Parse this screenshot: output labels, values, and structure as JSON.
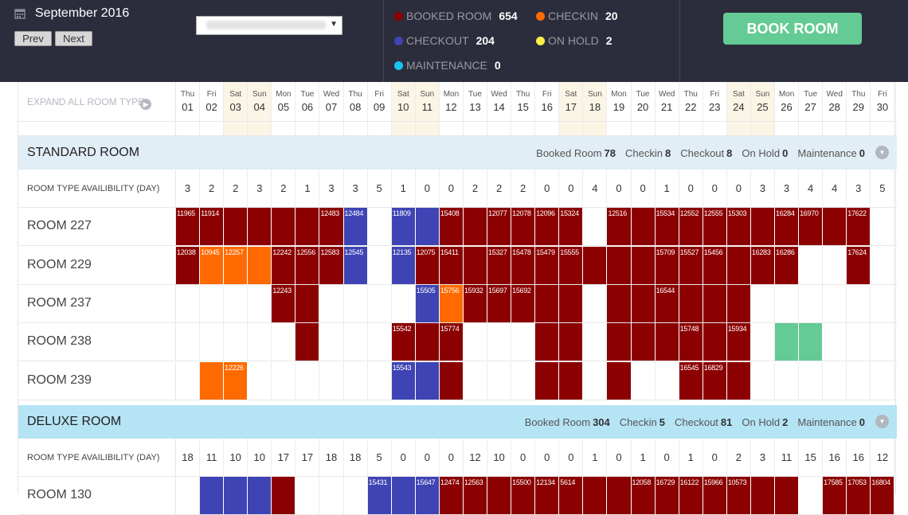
{
  "header": {
    "month_title": "September 2016",
    "prev_label": "Prev",
    "next_label": "Next",
    "hotel_select_value": "",
    "book_button_label": "BOOK ROOM",
    "statuses": [
      {
        "label": "BOOKED ROOM",
        "count": "654",
        "color": "#8b0000"
      },
      {
        "label": "CHECKIN",
        "count": "20",
        "color": "#ff6a00"
      },
      {
        "label": "CHECKOUT",
        "count": "204",
        "color": "#3f44b4"
      },
      {
        "label": "ON HOLD",
        "count": "2",
        "color": "#ffef48"
      },
      {
        "label": "MAINTENANCE",
        "count": "0",
        "color": "#17c4f2"
      }
    ]
  },
  "colors": {
    "booked": "#8b0000",
    "checkin": "#ff6a00",
    "checkout": "#3f44b4",
    "onhold": "#ffef48",
    "maintenance": "#17c4f2",
    "available_selected": "#64cb94"
  },
  "calendar": {
    "expand_label": "EXPAND ALL ROOM TYPE",
    "days": [
      {
        "name": "Thu",
        "num": "01"
      },
      {
        "name": "Fri",
        "num": "02"
      },
      {
        "name": "Sat",
        "num": "03"
      },
      {
        "name": "Sun",
        "num": "04"
      },
      {
        "name": "Mon",
        "num": "05"
      },
      {
        "name": "Tue",
        "num": "06"
      },
      {
        "name": "Wed",
        "num": "07"
      },
      {
        "name": "Thu",
        "num": "08"
      },
      {
        "name": "Fri",
        "num": "09"
      },
      {
        "name": "Sat",
        "num": "10"
      },
      {
        "name": "Sun",
        "num": "11"
      },
      {
        "name": "Mon",
        "num": "12"
      },
      {
        "name": "Tue",
        "num": "13"
      },
      {
        "name": "Wed",
        "num": "14"
      },
      {
        "name": "Thu",
        "num": "15"
      },
      {
        "name": "Fri",
        "num": "16"
      },
      {
        "name": "Sat",
        "num": "17"
      },
      {
        "name": "Sun",
        "num": "18"
      },
      {
        "name": "Mon",
        "num": "19"
      },
      {
        "name": "Tue",
        "num": "20"
      },
      {
        "name": "Wed",
        "num": "21"
      },
      {
        "name": "Thu",
        "num": "22"
      },
      {
        "name": "Fri",
        "num": "23"
      },
      {
        "name": "Sat",
        "num": "24"
      },
      {
        "name": "Sun",
        "num": "25"
      },
      {
        "name": "Mon",
        "num": "26"
      },
      {
        "name": "Tue",
        "num": "27"
      },
      {
        "name": "Wed",
        "num": "28"
      },
      {
        "name": "Thu",
        "num": "29"
      },
      {
        "name": "Fri",
        "num": "30"
      }
    ]
  },
  "sections": [
    {
      "title": "STANDARD ROOM",
      "stats": [
        {
          "label": "Booked Room",
          "value": "78"
        },
        {
          "label": "Checkin",
          "value": "8"
        },
        {
          "label": "Checkout",
          "value": "8"
        },
        {
          "label": "On Hold",
          "value": "0"
        },
        {
          "label": "Maintenance",
          "value": "0"
        }
      ],
      "availability_label": "ROOM TYPE AVAILIBILITY (DAY)",
      "availability": [
        "3",
        "2",
        "2",
        "3",
        "2",
        "1",
        "3",
        "3",
        "5",
        "1",
        "0",
        "0",
        "2",
        "2",
        "2",
        "0",
        "0",
        "4",
        "0",
        "0",
        "1",
        "0",
        "0",
        "0",
        "3",
        "3",
        "4",
        "4",
        "3",
        "5"
      ],
      "rooms": [
        {
          "name": "ROOM 227",
          "days": [
            {
              "s": "booked",
              "r": "11965"
            },
            {
              "s": "booked",
              "r": "11914"
            },
            {
              "s": "booked",
              "r": ""
            },
            {
              "s": "booked",
              "r": ""
            },
            {
              "s": "booked",
              "r": ""
            },
            {
              "s": "booked",
              "r": ""
            },
            {
              "s": "booked",
              "r": "12483"
            },
            {
              "s": "checkout",
              "r": "12484"
            },
            {
              "s": "",
              "r": ""
            },
            {
              "s": "checkout",
              "r": "11809"
            },
            {
              "s": "checkout",
              "r": ""
            },
            {
              "s": "booked",
              "r": "15408"
            },
            {
              "s": "booked",
              "r": ""
            },
            {
              "s": "booked",
              "r": "12077"
            },
            {
              "s": "booked",
              "r": "12078"
            },
            {
              "s": "booked",
              "r": "12096"
            },
            {
              "s": "booked",
              "r": "15324"
            },
            {
              "s": "",
              "r": ""
            },
            {
              "s": "booked",
              "r": "12516"
            },
            {
              "s": "booked",
              "r": ""
            },
            {
              "s": "booked",
              "r": "15534"
            },
            {
              "s": "booked",
              "r": "12552"
            },
            {
              "s": "booked",
              "r": "12555"
            },
            {
              "s": "booked",
              "r": "15303"
            },
            {
              "s": "booked",
              "r": ""
            },
            {
              "s": "booked",
              "r": "16284"
            },
            {
              "s": "booked",
              "r": "16970"
            },
            {
              "s": "booked",
              "r": ""
            },
            {
              "s": "booked",
              "r": "17622"
            },
            {
              "s": "",
              "r": ""
            }
          ]
        },
        {
          "name": "ROOM 229",
          "days": [
            {
              "s": "booked",
              "r": "12038"
            },
            {
              "s": "checkin",
              "r": "10945"
            },
            {
              "s": "checkin",
              "r": "12257"
            },
            {
              "s": "checkin",
              "r": ""
            },
            {
              "s": "booked",
              "r": "12242"
            },
            {
              "s": "booked",
              "r": "12556"
            },
            {
              "s": "booked",
              "r": "12583"
            },
            {
              "s": "checkout",
              "r": "12545"
            },
            {
              "s": "",
              "r": ""
            },
            {
              "s": "checkout",
              "r": "12135"
            },
            {
              "s": "booked",
              "r": "12075"
            },
            {
              "s": "booked",
              "r": "15411"
            },
            {
              "s": "booked",
              "r": ""
            },
            {
              "s": "booked",
              "r": "15327"
            },
            {
              "s": "booked",
              "r": "15478"
            },
            {
              "s": "booked",
              "r": "15479"
            },
            {
              "s": "booked",
              "r": "15555"
            },
            {
              "s": "booked",
              "r": ""
            },
            {
              "s": "booked",
              "r": ""
            },
            {
              "s": "booked",
              "r": ""
            },
            {
              "s": "booked",
              "r": "15709"
            },
            {
              "s": "booked",
              "r": "15527"
            },
            {
              "s": "booked",
              "r": "15456"
            },
            {
              "s": "booked",
              "r": ""
            },
            {
              "s": "booked",
              "r": "16283"
            },
            {
              "s": "booked",
              "r": "16286"
            },
            {
              "s": "",
              "r": ""
            },
            {
              "s": "",
              "r": ""
            },
            {
              "s": "booked",
              "r": "17624"
            },
            {
              "s": "",
              "r": ""
            }
          ]
        },
        {
          "name": "ROOM 237",
          "days": [
            {
              "s": "",
              "r": ""
            },
            {
              "s": "",
              "r": ""
            },
            {
              "s": "",
              "r": ""
            },
            {
              "s": "",
              "r": ""
            },
            {
              "s": "booked",
              "r": "12243"
            },
            {
              "s": "booked",
              "r": ""
            },
            {
              "s": "",
              "r": ""
            },
            {
              "s": "",
              "r": ""
            },
            {
              "s": "",
              "r": ""
            },
            {
              "s": "",
              "r": ""
            },
            {
              "s": "checkout",
              "r": "15505"
            },
            {
              "s": "checkin",
              "r": "15756"
            },
            {
              "s": "booked",
              "r": "15932"
            },
            {
              "s": "booked",
              "r": "15697"
            },
            {
              "s": "booked",
              "r": "15692"
            },
            {
              "s": "booked",
              "r": ""
            },
            {
              "s": "booked",
              "r": ""
            },
            {
              "s": "",
              "r": ""
            },
            {
              "s": "booked",
              "r": ""
            },
            {
              "s": "booked",
              "r": ""
            },
            {
              "s": "booked",
              "r": "16544"
            },
            {
              "s": "booked",
              "r": ""
            },
            {
              "s": "booked",
              "r": ""
            },
            {
              "s": "booked",
              "r": ""
            },
            {
              "s": "",
              "r": ""
            },
            {
              "s": "",
              "r": ""
            },
            {
              "s": "",
              "r": ""
            },
            {
              "s": "",
              "r": ""
            },
            {
              "s": "",
              "r": ""
            },
            {
              "s": "",
              "r": ""
            }
          ]
        },
        {
          "name": "ROOM 238",
          "days": [
            {
              "s": "",
              "r": ""
            },
            {
              "s": "",
              "r": ""
            },
            {
              "s": "",
              "r": ""
            },
            {
              "s": "",
              "r": ""
            },
            {
              "s": "",
              "r": ""
            },
            {
              "s": "booked",
              "r": ""
            },
            {
              "s": "",
              "r": ""
            },
            {
              "s": "",
              "r": ""
            },
            {
              "s": "",
              "r": ""
            },
            {
              "s": "booked",
              "r": "15542"
            },
            {
              "s": "booked",
              "r": ""
            },
            {
              "s": "booked",
              "r": "15774"
            },
            {
              "s": "",
              "r": ""
            },
            {
              "s": "",
              "r": ""
            },
            {
              "s": "",
              "r": ""
            },
            {
              "s": "booked",
              "r": ""
            },
            {
              "s": "booked",
              "r": ""
            },
            {
              "s": "",
              "r": ""
            },
            {
              "s": "booked",
              "r": ""
            },
            {
              "s": "booked",
              "r": ""
            },
            {
              "s": "booked",
              "r": ""
            },
            {
              "s": "booked",
              "r": "15748"
            },
            {
              "s": "booked",
              "r": ""
            },
            {
              "s": "booked",
              "r": "15934"
            },
            {
              "s": "",
              "r": ""
            },
            {
              "s": "selected",
              "r": ""
            },
            {
              "s": "selected",
              "r": ""
            },
            {
              "s": "",
              "r": ""
            },
            {
              "s": "",
              "r": ""
            },
            {
              "s": "",
              "r": ""
            }
          ]
        },
        {
          "name": "ROOM 239",
          "days": [
            {
              "s": "",
              "r": ""
            },
            {
              "s": "checkin",
              "r": ""
            },
            {
              "s": "checkin",
              "r": "12226"
            },
            {
              "s": "",
              "r": ""
            },
            {
              "s": "",
              "r": ""
            },
            {
              "s": "",
              "r": ""
            },
            {
              "s": "",
              "r": ""
            },
            {
              "s": "",
              "r": ""
            },
            {
              "s": "",
              "r": ""
            },
            {
              "s": "checkout",
              "r": "15543"
            },
            {
              "s": "checkout",
              "r": ""
            },
            {
              "s": "booked",
              "r": ""
            },
            {
              "s": "",
              "r": ""
            },
            {
              "s": "",
              "r": ""
            },
            {
              "s": "",
              "r": ""
            },
            {
              "s": "booked",
              "r": ""
            },
            {
              "s": "booked",
              "r": ""
            },
            {
              "s": "",
              "r": ""
            },
            {
              "s": "booked",
              "r": ""
            },
            {
              "s": "",
              "r": ""
            },
            {
              "s": "",
              "r": ""
            },
            {
              "s": "booked",
              "r": "16545"
            },
            {
              "s": "booked",
              "r": "16829"
            },
            {
              "s": "booked",
              "r": ""
            },
            {
              "s": "",
              "r": ""
            },
            {
              "s": "",
              "r": ""
            },
            {
              "s": "",
              "r": ""
            },
            {
              "s": "",
              "r": ""
            },
            {
              "s": "",
              "r": ""
            },
            {
              "s": "",
              "r": ""
            }
          ]
        }
      ]
    },
    {
      "title": "DELUXE ROOM",
      "stats": [
        {
          "label": "Booked Room",
          "value": "304"
        },
        {
          "label": "Checkin",
          "value": "5"
        },
        {
          "label": "Checkout",
          "value": "81"
        },
        {
          "label": "On Hold",
          "value": "2"
        },
        {
          "label": "Maintenance",
          "value": "0"
        }
      ],
      "availability_label": "ROOM TYPE AVAILIBILITY (DAY)",
      "availability": [
        "18",
        "11",
        "10",
        "10",
        "17",
        "17",
        "18",
        "18",
        "5",
        "0",
        "0",
        "0",
        "12",
        "10",
        "0",
        "0",
        "0",
        "1",
        "0",
        "1",
        "0",
        "1",
        "0",
        "2",
        "3",
        "11",
        "15",
        "16",
        "16",
        "12"
      ],
      "rooms": [
        {
          "name": "ROOM 130",
          "days": [
            {
              "s": "",
              "r": ""
            },
            {
              "s": "checkout",
              "r": ""
            },
            {
              "s": "checkout",
              "r": ""
            },
            {
              "s": "checkout",
              "r": ""
            },
            {
              "s": "booked",
              "r": ""
            },
            {
              "s": "",
              "r": ""
            },
            {
              "s": "",
              "r": ""
            },
            {
              "s": "",
              "r": ""
            },
            {
              "s": "checkout",
              "r": "15431"
            },
            {
              "s": "checkout",
              "r": ""
            },
            {
              "s": "checkout",
              "r": "15647"
            },
            {
              "s": "booked",
              "r": "12474"
            },
            {
              "s": "booked",
              "r": "12563"
            },
            {
              "s": "booked",
              "r": ""
            },
            {
              "s": "booked",
              "r": "15500"
            },
            {
              "s": "booked",
              "r": "12134"
            },
            {
              "s": "booked",
              "r": "5614"
            },
            {
              "s": "booked",
              "r": ""
            },
            {
              "s": "booked",
              "r": ""
            },
            {
              "s": "booked",
              "r": "12058"
            },
            {
              "s": "booked",
              "r": "16729"
            },
            {
              "s": "booked",
              "r": "16122"
            },
            {
              "s": "booked",
              "r": "15966"
            },
            {
              "s": "booked",
              "r": "10573"
            },
            {
              "s": "booked",
              "r": ""
            },
            {
              "s": "booked",
              "r": ""
            },
            {
              "s": "",
              "r": ""
            },
            {
              "s": "booked",
              "r": "17585"
            },
            {
              "s": "booked",
              "r": "17053"
            },
            {
              "s": "booked",
              "r": "16804"
            }
          ]
        }
      ]
    }
  ]
}
